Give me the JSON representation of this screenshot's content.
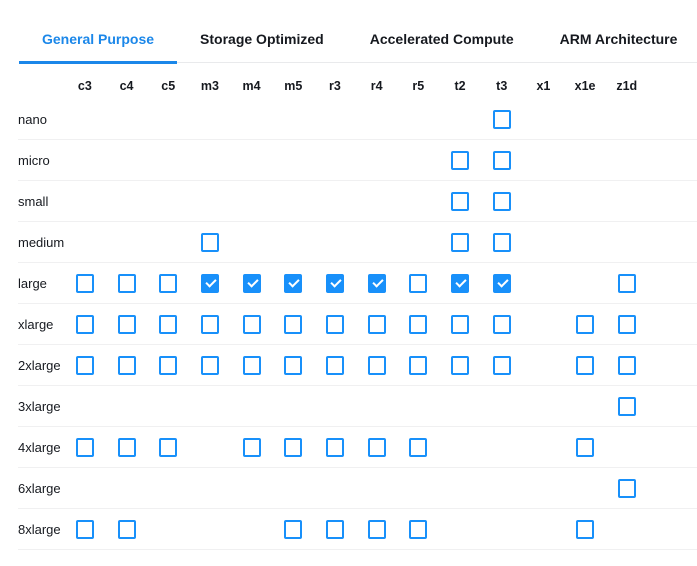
{
  "tabs": [
    {
      "label": "General Purpose",
      "active": true
    },
    {
      "label": "Storage Optimized",
      "active": false
    },
    {
      "label": "Accelerated Compute",
      "active": false
    },
    {
      "label": "ARM Architecture",
      "active": false
    }
  ],
  "matrix": {
    "columns": [
      "c3",
      "c4",
      "c5",
      "m3",
      "m4",
      "m5",
      "r3",
      "r4",
      "r5",
      "t2",
      "t3",
      "x1",
      "x1e",
      "z1d"
    ],
    "cell_state_encoding": {
      "0": "no-checkbox",
      "1": "unchecked",
      "2": "checked"
    },
    "rows": [
      {
        "label": "nano",
        "cells": [
          0,
          0,
          0,
          0,
          0,
          0,
          0,
          0,
          0,
          0,
          1,
          0,
          0,
          0
        ]
      },
      {
        "label": "micro",
        "cells": [
          0,
          0,
          0,
          0,
          0,
          0,
          0,
          0,
          0,
          1,
          1,
          0,
          0,
          0
        ]
      },
      {
        "label": "small",
        "cells": [
          0,
          0,
          0,
          0,
          0,
          0,
          0,
          0,
          0,
          1,
          1,
          0,
          0,
          0
        ]
      },
      {
        "label": "medium",
        "cells": [
          0,
          0,
          0,
          1,
          0,
          0,
          0,
          0,
          0,
          1,
          1,
          0,
          0,
          0
        ]
      },
      {
        "label": "large",
        "cells": [
          1,
          1,
          1,
          2,
          2,
          2,
          2,
          2,
          1,
          2,
          2,
          0,
          0,
          1
        ]
      },
      {
        "label": "xlarge",
        "cells": [
          1,
          1,
          1,
          1,
          1,
          1,
          1,
          1,
          1,
          1,
          1,
          0,
          1,
          1
        ]
      },
      {
        "label": "2xlarge",
        "cells": [
          1,
          1,
          1,
          1,
          1,
          1,
          1,
          1,
          1,
          1,
          1,
          0,
          1,
          1
        ]
      },
      {
        "label": "3xlarge",
        "cells": [
          0,
          0,
          0,
          0,
          0,
          0,
          0,
          0,
          0,
          0,
          0,
          0,
          0,
          1
        ]
      },
      {
        "label": "4xlarge",
        "cells": [
          1,
          1,
          1,
          0,
          1,
          1,
          1,
          1,
          1,
          0,
          0,
          0,
          1,
          0
        ]
      },
      {
        "label": "6xlarge",
        "cells": [
          0,
          0,
          0,
          0,
          0,
          0,
          0,
          0,
          0,
          0,
          0,
          0,
          0,
          1
        ]
      },
      {
        "label": "8xlarge",
        "cells": [
          1,
          1,
          0,
          0,
          0,
          1,
          1,
          1,
          1,
          0,
          0,
          0,
          1,
          0
        ]
      }
    ]
  },
  "colors": {
    "checkbox_blue": "#1890fa",
    "tab_active_blue": "#1b87e9",
    "tab_divider": "#e9eaec",
    "row_divider": "#f0f0f1",
    "text_dark": "#16191f"
  }
}
